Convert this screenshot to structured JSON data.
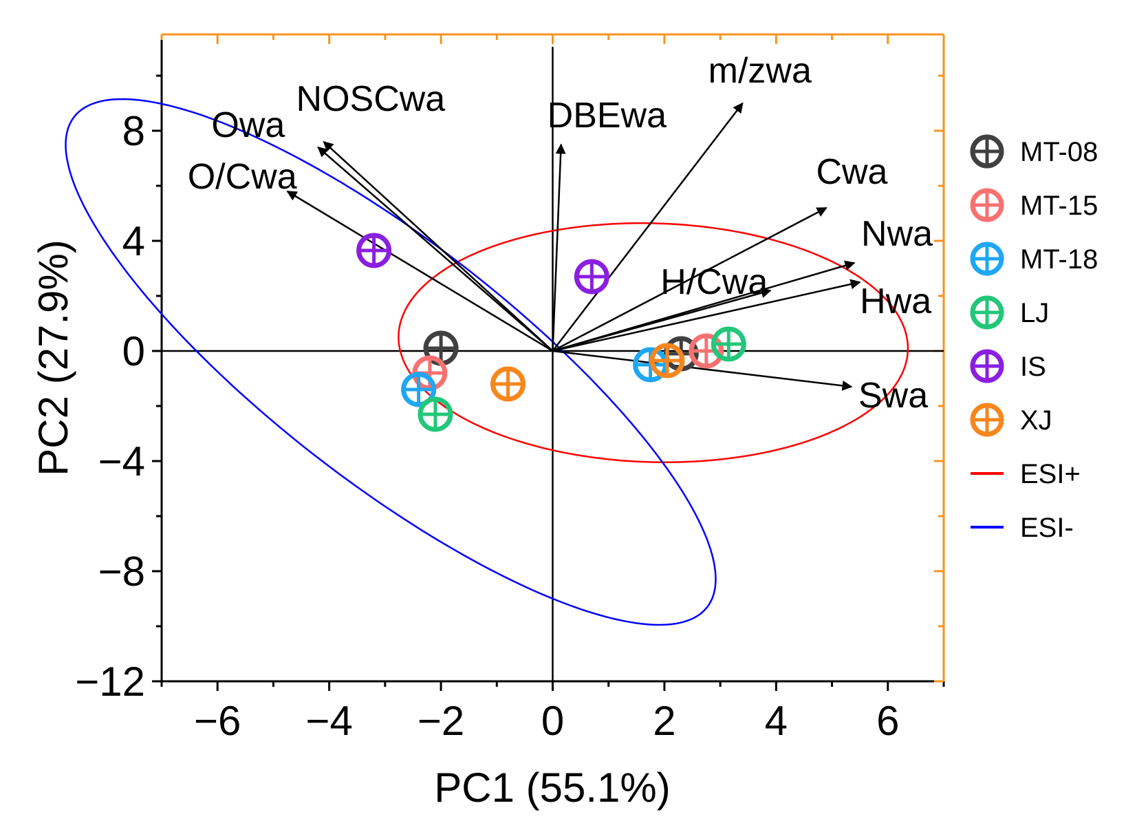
{
  "chart_data": {
    "type": "scatter",
    "subtype": "pca-biplot",
    "title": "",
    "xlabel": "PC1 (55.1%)",
    "ylabel": "PC2 (27.9%)",
    "xlim": [
      -7,
      7
    ],
    "ylim": [
      -12,
      11.5
    ],
    "x_ticks": [
      -6,
      -4,
      -2,
      0,
      2,
      4,
      6
    ],
    "y_ticks": [
      -12,
      -8,
      -4,
      0,
      4,
      8
    ],
    "x_tick_labels": [
      "−6",
      "−4",
      "−2",
      "0",
      "2",
      "4",
      "6"
    ],
    "y_tick_labels": [
      "−12",
      "−8",
      "−4",
      "0",
      "4",
      "8"
    ],
    "grid": false,
    "colors": {
      "frame_right_top": "#f7941d",
      "axis": "#000000",
      "ESI+": "#ff0000",
      "ESI-": "#0000ff"
    },
    "loadings": [
      {
        "name": "m/zwa",
        "x": 3.4,
        "y": 9.0
      },
      {
        "name": "DBEwa",
        "x": 0.15,
        "y": 7.5
      },
      {
        "name": "NOSCwa",
        "x": -4.1,
        "y": 7.6
      },
      {
        "name": "Owa",
        "x": -4.2,
        "y": 7.4
      },
      {
        "name": "O/Cwa",
        "x": -4.75,
        "y": 5.8
      },
      {
        "name": "Cwa",
        "x": 4.9,
        "y": 5.2
      },
      {
        "name": "Nwa",
        "x": 5.4,
        "y": 3.2
      },
      {
        "name": "H/Cwa",
        "x": 3.9,
        "y": 2.2
      },
      {
        "name": "Hwa",
        "x": 5.5,
        "y": 2.5
      },
      {
        "name": "Swa",
        "x": 5.35,
        "y": -1.3
      }
    ],
    "series": [
      {
        "name": "MT-08",
        "color": "#404040",
        "points": [
          {
            "x": -2.0,
            "y": 0.1
          },
          {
            "x": 2.3,
            "y": -0.1
          }
        ]
      },
      {
        "name": "MT-15",
        "color": "#f87171",
        "points": [
          {
            "x": -2.2,
            "y": -0.8
          },
          {
            "x": 2.75,
            "y": 0.0
          }
        ]
      },
      {
        "name": "MT-18",
        "color": "#1ea7f4",
        "points": [
          {
            "x": -2.4,
            "y": -1.4
          },
          {
            "x": 1.75,
            "y": -0.5
          }
        ]
      },
      {
        "name": "LJ",
        "color": "#22c77a",
        "points": [
          {
            "x": -2.1,
            "y": -2.3
          },
          {
            "x": 3.15,
            "y": 0.25
          }
        ]
      },
      {
        "name": "IS",
        "color": "#8a1fe0",
        "points": [
          {
            "x": -3.2,
            "y": 3.65
          },
          {
            "x": 0.7,
            "y": 2.7
          }
        ]
      },
      {
        "name": "XJ",
        "color": "#f7861d",
        "points": [
          {
            "x": -0.8,
            "y": -1.2
          },
          {
            "x": 2.05,
            "y": -0.35
          }
        ]
      }
    ],
    "ellipses": [
      {
        "name": "ESI+",
        "color": "#ff0000",
        "center": [
          1.8,
          0.3
        ],
        "semi_axes": [
          4.6,
          4.3
        ],
        "rotation_deg": -22
      },
      {
        "name": "ESI-",
        "color": "#0000ff",
        "center": [
          -2.9,
          -0.4
        ],
        "semi_axes": [
          10.8,
          2.9
        ],
        "rotation_deg": -61
      }
    ],
    "legend": {
      "position": "right",
      "entries": [
        {
          "label": "MT-08",
          "kind": "marker",
          "color": "#404040"
        },
        {
          "label": "MT-15",
          "kind": "marker",
          "color": "#f87171"
        },
        {
          "label": "MT-18",
          "kind": "marker",
          "color": "#1ea7f4"
        },
        {
          "label": "LJ",
          "kind": "marker",
          "color": "#22c77a"
        },
        {
          "label": "IS",
          "kind": "marker",
          "color": "#8a1fe0"
        },
        {
          "label": "XJ",
          "kind": "marker",
          "color": "#f7861d"
        },
        {
          "label": "ESI+",
          "kind": "line",
          "color": "#ff0000"
        },
        {
          "label": "ESI-",
          "kind": "line",
          "color": "#0000ff"
        }
      ]
    }
  }
}
